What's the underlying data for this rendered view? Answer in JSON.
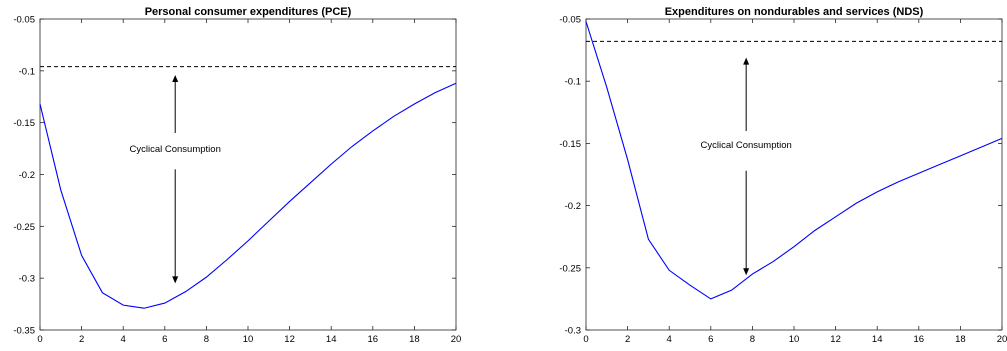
{
  "chart_data": [
    {
      "type": "line",
      "title": "Personal consumer expenditures (PCE)",
      "xlabel": "",
      "ylabel": "",
      "xlim": [
        0,
        20
      ],
      "ylim": [
        -0.35,
        -0.05
      ],
      "xticks": [
        0,
        2,
        4,
        6,
        8,
        10,
        12,
        14,
        16,
        18,
        20
      ],
      "xtick_labels": [
        "0",
        "2",
        "4",
        "6",
        "8",
        "10",
        "12",
        "14",
        "16",
        "18",
        "20"
      ],
      "yticks": [
        -0.35,
        -0.3,
        -0.25,
        -0.2,
        -0.15,
        -0.1,
        -0.05
      ],
      "ytick_labels": [
        "-0.35",
        "-0.3",
        "-0.25",
        "-0.2",
        "-0.15",
        "-0.1",
        "-0.05"
      ],
      "grid": false,
      "series": [
        {
          "color": "#0000ff",
          "x": [
            0,
            1,
            2,
            3,
            4,
            5,
            6,
            7,
            8,
            9,
            10,
            11,
            12,
            13,
            14,
            15,
            16,
            17,
            18,
            19,
            20
          ],
          "y": [
            -0.132,
            -0.215,
            -0.278,
            -0.314,
            -0.326,
            -0.329,
            -0.324,
            -0.313,
            -0.299,
            -0.282,
            -0.264,
            -0.245,
            -0.226,
            -0.208,
            -0.19,
            -0.173,
            -0.158,
            -0.144,
            -0.132,
            -0.121,
            -0.112
          ]
        }
      ],
      "reference_line": {
        "y": -0.096,
        "style": "dashed",
        "color": "#000000"
      },
      "annotation": {
        "text": "Cyclical Consumption",
        "x": 6.5,
        "y": -0.175,
        "arrow_up_to": -0.104,
        "arrow_down_to": -0.305,
        "arrow_top_from": -0.16,
        "arrow_bottom_from": -0.195
      }
    },
    {
      "type": "line",
      "title": "Expenditures on nondurables and services (NDS)",
      "xlabel": "",
      "ylabel": "",
      "xlim": [
        0,
        20
      ],
      "ylim": [
        -0.3,
        -0.05
      ],
      "xticks": [
        0,
        2,
        4,
        6,
        8,
        10,
        12,
        14,
        16,
        18,
        20
      ],
      "xtick_labels": [
        "0",
        "2",
        "4",
        "6",
        "8",
        "10",
        "12",
        "14",
        "16",
        "18",
        "20"
      ],
      "yticks": [
        -0.3,
        -0.25,
        -0.2,
        -0.15,
        -0.1,
        -0.05
      ],
      "ytick_labels": [
        "-0.3",
        "-0.25",
        "-0.2",
        "-0.15",
        "-0.1",
        "-0.05"
      ],
      "grid": false,
      "series": [
        {
          "color": "#0000ff",
          "x": [
            0,
            1,
            2,
            3,
            4,
            5,
            6,
            7,
            8,
            9,
            10,
            11,
            12,
            13,
            14,
            15,
            16,
            17,
            18,
            19,
            20
          ],
          "y": [
            -0.052,
            -0.105,
            -0.163,
            -0.227,
            -0.252,
            -0.264,
            -0.275,
            -0.268,
            -0.255,
            -0.245,
            -0.233,
            -0.22,
            -0.209,
            -0.198,
            -0.189,
            -0.181,
            -0.174,
            -0.167,
            -0.16,
            -0.153,
            -0.146
          ]
        }
      ],
      "reference_line": {
        "y": -0.068,
        "style": "dashed",
        "color": "#000000"
      },
      "annotation": {
        "text": "Cyclical Consumption",
        "x": 7.7,
        "y": -0.151,
        "arrow_up_to": -0.081,
        "arrow_down_to": -0.256,
        "arrow_top_from": -0.14,
        "arrow_bottom_from": -0.172
      }
    }
  ]
}
